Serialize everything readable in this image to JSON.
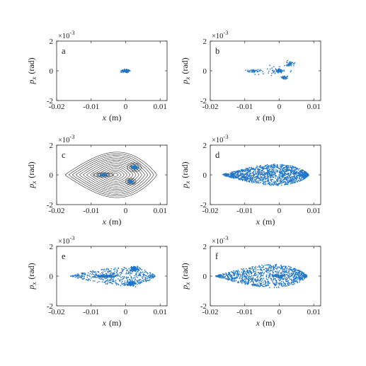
{
  "chart_data": [
    {
      "panel_label": "a",
      "type": "scatter",
      "xlabel": "x",
      "xunit": "(m)",
      "ylabel": "p_x",
      "yunit": "(rad)",
      "xlim": [
        -0.02,
        0.012
      ],
      "ylim": [
        -0.002,
        0.002
      ],
      "xticks": [
        -0.02,
        -0.01,
        0,
        0.01
      ],
      "xtick_labels": [
        "-0.02",
        "-0.01",
        "0",
        "0.01"
      ],
      "yticks": [
        -0.002,
        0,
        0.002
      ],
      "ytick_labels": [
        "-2",
        "0",
        "2"
      ],
      "exponent_label": "×10",
      "exponent_power": "-3",
      "clusters": [
        {
          "cx": 0.0,
          "cy": 0.0,
          "sx": 0.0011,
          "sy": 8e-05,
          "n": 160
        }
      ],
      "color": "#2176c7"
    },
    {
      "panel_label": "b",
      "type": "scatter",
      "xlabel": "x",
      "xunit": "(m)",
      "ylabel": "p_x",
      "yunit": "(rad)",
      "xlim": [
        -0.02,
        0.012
      ],
      "ylim": [
        -0.002,
        0.002
      ],
      "xticks": [
        -0.02,
        -0.01,
        0,
        0.01
      ],
      "xtick_labels": [
        "-0.02",
        "-0.01",
        "0",
        "0.01"
      ],
      "yticks": [
        -0.002,
        0,
        0.002
      ],
      "ytick_labels": [
        "-2",
        "0",
        "2"
      ],
      "exponent_label": "×10",
      "exponent_power": "-3",
      "clusters": [
        {
          "cx": -0.0075,
          "cy": 0.0,
          "sx": 0.002,
          "sy": 9e-05,
          "n": 40
        },
        {
          "cx": 0.0,
          "cy": 0.0,
          "sx": 0.0012,
          "sy": 0.00012,
          "n": 60
        },
        {
          "cx": 0.003,
          "cy": 0.00045,
          "sx": 0.0012,
          "sy": 0.00015,
          "n": 40
        },
        {
          "cx": 0.0015,
          "cy": -0.00045,
          "sx": 0.0009,
          "sy": 0.00012,
          "n": 40
        },
        {
          "cx": -0.002,
          "cy": 0.0,
          "sx": 0.006,
          "sy": 0.00035,
          "n": 25
        }
      ],
      "color": "#2176c7"
    },
    {
      "panel_label": "c",
      "type": "scatter",
      "xlabel": "x",
      "xunit": "(m)",
      "ylabel": "p_x",
      "yunit": "(rad)",
      "xlim": [
        -0.02,
        0.012
      ],
      "ylim": [
        -0.002,
        0.002
      ],
      "xticks": [
        -0.02,
        -0.01,
        0,
        0.01
      ],
      "xtick_labels": [
        "-0.02",
        "-0.01",
        "0",
        "0.01"
      ],
      "yticks": [
        -0.002,
        0,
        0.002
      ],
      "ytick_labels": [
        "-2",
        "0",
        "2"
      ],
      "exponent_label": "×10",
      "exponent_power": "-3",
      "overlay": "phase-space contours",
      "contours": {
        "center_x": -0.003,
        "tip_x": -0.0175,
        "right_x": 0.009,
        "max_p": 0.00155,
        "levels": 14
      },
      "islands": [
        {
          "cx": -0.0065,
          "cy": 0.0,
          "rx": 0.003,
          "ry": 0.00015
        },
        {
          "cx": 0.0025,
          "cy": 0.0005,
          "rx": 0.002,
          "ry": 0.0003
        },
        {
          "cx": 0.0015,
          "cy": -0.00045,
          "rx": 0.0015,
          "ry": 0.00022
        }
      ],
      "clusters": [
        {
          "cx": -0.0065,
          "cy": 0.0,
          "sx": 0.0011,
          "sy": 6e-05,
          "n": 110
        },
        {
          "cx": 0.0025,
          "cy": 0.0005,
          "sx": 0.0008,
          "sy": 0.00012,
          "n": 110
        },
        {
          "cx": 0.0015,
          "cy": -0.00045,
          "sx": 0.0006,
          "sy": 9e-05,
          "n": 100
        }
      ],
      "color": "#2176c7"
    },
    {
      "panel_label": "d",
      "type": "scatter",
      "xlabel": "x",
      "xunit": "(m)",
      "ylabel": "p_x",
      "yunit": "(rad)",
      "xlim": [
        -0.02,
        0.012
      ],
      "ylim": [
        -0.002,
        0.002
      ],
      "xticks": [
        -0.02,
        -0.01,
        0,
        0.01
      ],
      "xtick_labels": [
        "-0.02",
        "-0.01",
        "0",
        "0.01"
      ],
      "yticks": [
        -0.002,
        0,
        0.002
      ],
      "ytick_labels": [
        "-2",
        "0",
        "2"
      ],
      "exponent_label": "×10",
      "exponent_power": "-3",
      "envelope": {
        "tip_x": -0.0165,
        "right_x": 0.0085,
        "max_p": 0.001,
        "n": 1300
      },
      "color": "#2176c7"
    },
    {
      "panel_label": "e",
      "type": "scatter",
      "xlabel": "x",
      "xunit": "(m)",
      "ylabel": "p_x",
      "yunit": "(rad)",
      "xlim": [
        -0.02,
        0.012
      ],
      "ylim": [
        -0.002,
        0.002
      ],
      "xticks": [
        -0.02,
        -0.01,
        0,
        0.01
      ],
      "xtick_labels": [
        "-0.02",
        "-0.01",
        "0",
        "0.01"
      ],
      "yticks": [
        -0.002,
        0,
        0.002
      ],
      "ytick_labels": [
        "-2",
        "0",
        "2"
      ],
      "exponent_label": "×10",
      "exponent_power": "-3",
      "envelope": {
        "tip_x": -0.016,
        "right_x": 0.0085,
        "max_p": 0.0009,
        "n": 450
      },
      "clusters": [
        {
          "cx": -0.006,
          "cy": 0.0,
          "sx": 0.0025,
          "sy": 9e-05,
          "n": 150
        },
        {
          "cx": 0.0025,
          "cy": 0.0005,
          "sx": 0.0011,
          "sy": 0.00015,
          "n": 130
        },
        {
          "cx": 0.0015,
          "cy": -0.0005,
          "sx": 0.0011,
          "sy": 0.00015,
          "n": 120
        }
      ],
      "color": "#2176c7"
    },
    {
      "panel_label": "f",
      "type": "scatter",
      "xlabel": "x",
      "xunit": "(m)",
      "ylabel": "p_x",
      "yunit": "(rad)",
      "xlim": [
        -0.02,
        0.012
      ],
      "ylim": [
        -0.002,
        0.002
      ],
      "xticks": [
        -0.02,
        -0.01,
        0,
        0.01
      ],
      "xtick_labels": [
        "-0.02",
        "-0.01",
        "0",
        "0.01"
      ],
      "yticks": [
        -0.002,
        0,
        0.002
      ],
      "ytick_labels": [
        "-2",
        "0",
        "2"
      ],
      "exponent_label": "×10",
      "exponent_power": "-3",
      "envelope": {
        "tip_x": -0.0185,
        "right_x": 0.008,
        "max_p": 0.0011,
        "n": 1000
      },
      "clusters": [
        {
          "cx": 0.0,
          "cy": 0.0,
          "sx": 0.0018,
          "sy": 8e-05,
          "n": 50
        }
      ],
      "color": "#2176c7"
    }
  ]
}
